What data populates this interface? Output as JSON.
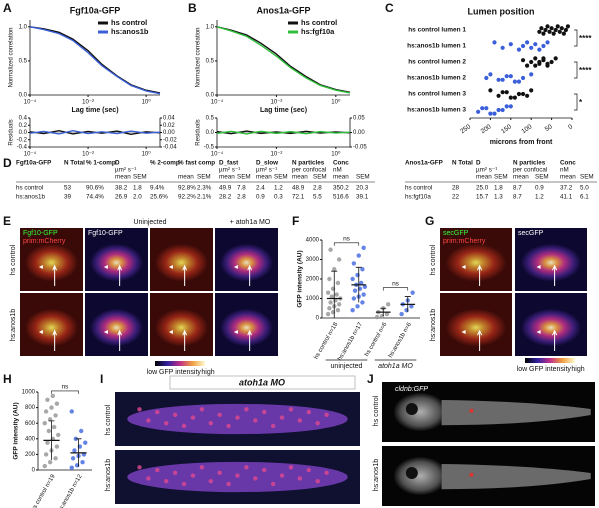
{
  "panel_letters": [
    "A",
    "B",
    "C",
    "D",
    "E",
    "F",
    "G",
    "H",
    "I",
    "J"
  ],
  "chart_data": [
    {
      "type": "line",
      "title": "Fgf10a-GFP",
      "ylabel": "Normalized correlation",
      "xlabel": "Lag time (sec)",
      "xlog": true,
      "xlim": [
        0.0001,
        3
      ],
      "xticks": [
        {
          "value": 0.0001,
          "label": "10⁻⁴"
        },
        {
          "value": 0.01,
          "label": "10⁻²"
        },
        {
          "value": 1,
          "label": "10⁰"
        }
      ],
      "ylim": [
        0,
        1.1
      ],
      "yticks": [
        {
          "value": 0,
          "label": "0.0"
        },
        0.5,
        {
          "value": 1,
          "label": "1.0"
        }
      ],
      "x": [
        0.0001,
        0.0003,
        0.001,
        0.003,
        0.01,
        0.03,
        0.1,
        0.3,
        1,
        3
      ],
      "series": [
        {
          "name": "hs control",
          "color": "#111111",
          "values": [
            1.0,
            0.97,
            0.92,
            0.82,
            0.65,
            0.45,
            0.28,
            0.15,
            0.07,
            0.03
          ]
        },
        {
          "name": "hs:anos1b",
          "color": "#3a5fd8",
          "values": [
            1.0,
            0.96,
            0.9,
            0.8,
            0.62,
            0.43,
            0.27,
            0.14,
            0.06,
            0.02
          ]
        }
      ]
    },
    {
      "type": "line",
      "ylabel": "Residuals",
      "xlog": true,
      "xlim": [
        0.0001,
        3
      ],
      "xticks": [
        {
          "value": 0.0001,
          "label": "10⁻⁴"
        },
        {
          "value": 0.01,
          "label": "10⁻²"
        },
        {
          "value": 1,
          "label": "10⁰"
        }
      ],
      "ylim": [
        -0.4,
        0.4
      ],
      "yticks": [
        -0.4,
        -0.2,
        {
          "value": 0,
          "label": "0.0"
        },
        0.2,
        0.4
      ],
      "y2lim": [
        -0.04,
        0.04
      ],
      "y2ticks": [
        -0.04,
        -0.02,
        {
          "value": 0,
          "label": "0.00"
        },
        0.02,
        0.04
      ],
      "x": [
        0.0001,
        0.0003,
        0.001,
        0.003,
        0.01,
        0.03,
        0.1,
        0.3,
        1,
        3
      ],
      "series": [
        {
          "color": "#111111",
          "values": [
            0.02,
            -0.03,
            0.05,
            -0.04,
            0.03,
            -0.02,
            0.04,
            -0.05,
            0.02,
            -0.01
          ]
        },
        {
          "color": "#3a5fd8",
          "values": [
            -0.02,
            0.03,
            -0.04,
            0.05,
            -0.03,
            0.02,
            -0.03,
            0.04,
            -0.02,
            0.01
          ]
        }
      ]
    },
    {
      "type": "line",
      "title": "Anos1a-GFP",
      "ylabel": "Normalized correlation",
      "xlabel": "Lag time (sec)",
      "xlog": true,
      "xlim": [
        0.0001,
        3
      ],
      "xticks": [
        {
          "value": 0.0001,
          "label": "10⁻⁴"
        },
        {
          "value": 0.01,
          "label": "10⁻²"
        },
        {
          "value": 1,
          "label": "10⁰"
        }
      ],
      "ylim": [
        0,
        1.1
      ],
      "yticks": [
        {
          "value": 0,
          "label": "0.0"
        },
        0.5,
        {
          "value": 1,
          "label": "1.0"
        }
      ],
      "x": [
        0.0001,
        0.0003,
        0.001,
        0.003,
        0.01,
        0.03,
        0.1,
        0.3,
        1,
        3
      ],
      "series": [
        {
          "name": "hs control",
          "color": "#111111",
          "values": [
            1.0,
            0.95,
            0.88,
            0.76,
            0.6,
            0.42,
            0.27,
            0.15,
            0.08,
            0.04
          ]
        },
        {
          "name": "hs:fgf10a",
          "color": "#2fbf3a",
          "values": [
            1.0,
            0.94,
            0.86,
            0.73,
            0.57,
            0.4,
            0.25,
            0.14,
            0.07,
            0.03
          ]
        }
      ]
    },
    {
      "type": "line",
      "ylabel": "Residuals",
      "xlog": true,
      "xlim": [
        0.0001,
        3
      ],
      "xticks": [
        {
          "value": 0.0001,
          "label": "10⁻⁴"
        },
        {
          "value": 0.01,
          "label": "10⁻²"
        },
        {
          "value": 1,
          "label": "10⁰"
        }
      ],
      "ylim": [
        -0.5,
        0.5
      ],
      "yticks": [
        -0.5,
        {
          "value": 0,
          "label": "0.0"
        },
        0.5
      ],
      "y2lim": [
        -0.05,
        0.05
      ],
      "y2ticks": [
        -0.05,
        {
          "value": 0,
          "label": "0.00"
        },
        0.05
      ],
      "x": [
        0.0001,
        0.0003,
        0.001,
        0.003,
        0.01,
        0.03,
        0.1,
        0.3,
        1,
        3
      ],
      "series": [
        {
          "color": "#111111",
          "values": [
            0.03,
            -0.04,
            0.05,
            -0.03,
            0.02,
            -0.03,
            0.04,
            -0.02,
            0.02,
            -0.01
          ]
        },
        {
          "color": "#2fbf3a",
          "values": [
            -0.03,
            0.04,
            -0.05,
            0.04,
            -0.03,
            0.03,
            -0.04,
            0.03,
            -0.02,
            0.01
          ]
        }
      ]
    },
    {
      "type": "strip-h",
      "title": "Lumen position",
      "xlabel": "microns from front",
      "xlim": [
        250,
        0
      ],
      "xticks": [
        250,
        200,
        150,
        100,
        50,
        0
      ],
      "categories": [
        "hs control lumen 1",
        "hs:anos1b lumen 1",
        "hs control lumen 2",
        "hs:anos1b lumen 2",
        "hs control lumen 3",
        "hs:anos1b lumen 3"
      ],
      "colors": [
        "#111111",
        "#3a5fd8",
        "#111111",
        "#3a5fd8",
        "#111111",
        "#3a5fd8"
      ],
      "values": [
        [
          10,
          15,
          20,
          25,
          30,
          35,
          40,
          45,
          50,
          55,
          60,
          65,
          70,
          75,
          80
        ],
        [
          60,
          70,
          80,
          90,
          100,
          110,
          120,
          130,
          150,
          170,
          190
        ],
        [
          40,
          50,
          60,
          70,
          80,
          90,
          100,
          110,
          120,
          60,
          70,
          80,
          90
        ],
        [
          100,
          120,
          140,
          160,
          180,
          200,
          210,
          130,
          150,
          170
        ],
        [
          100,
          120,
          140,
          160,
          180,
          200,
          130,
          150,
          170,
          110
        ],
        [
          150,
          170,
          190,
          210,
          230,
          160,
          180,
          200,
          220
        ]
      ],
      "annotations": [
        "****",
        "****",
        "*"
      ]
    },
    {
      "type": "strip-v",
      "ylabel": "GFP intensity (AU)",
      "ylim": [
        0,
        4000
      ],
      "yticks": [
        0,
        1000,
        2000,
        3000,
        4000
      ],
      "categories": [
        "hs control n=18",
        "hs:anos1b n=17",
        "hs control n=6",
        "hs:anos1b n=6"
      ],
      "groups": [
        "uninjected",
        "atoh1a MO"
      ],
      "colors": [
        "#999999",
        "#4a6fe3",
        "#999999",
        "#4a6fe3"
      ],
      "values": [
        [
          200,
          300,
          400,
          500,
          600,
          700,
          800,
          900,
          1000,
          1100,
          1200,
          1300,
          1500,
          1800,
          2000,
          2500,
          3000,
          3500
        ],
        [
          400,
          600,
          800,
          1000,
          1100,
          1200,
          1400,
          1500,
          1600,
          1700,
          1800,
          2000,
          2200,
          2500,
          2800,
          3200,
          3600
        ],
        [
          50,
          100,
          200,
          300,
          500,
          700
        ],
        [
          200,
          400,
          600,
          700,
          900,
          1300
        ]
      ],
      "means": [
        1000,
        1700,
        300,
        700
      ],
      "sd": [
        1400,
        900,
        200,
        400
      ],
      "annotations": [
        "ns",
        "ns"
      ]
    },
    {
      "type": "strip-v",
      "ylabel": "GFP intensity (AU)",
      "ylim": [
        0,
        1000
      ],
      "yticks": [
        0,
        200,
        400,
        600,
        800,
        1000
      ],
      "categories": [
        "hs control n=19",
        "hs:anos1b n=12"
      ],
      "colors": [
        "#999999",
        "#4a6fe3"
      ],
      "values": [
        [
          50,
          100,
          150,
          200,
          250,
          300,
          350,
          400,
          450,
          500,
          550,
          600,
          650,
          700,
          750,
          800,
          850,
          900,
          950
        ],
        [
          30,
          60,
          100,
          150,
          180,
          200,
          250,
          300,
          350,
          400,
          500,
          750
        ]
      ],
      "means": [
        380,
        220
      ],
      "sd": [
        250,
        180
      ],
      "annotations": [
        "ns"
      ]
    }
  ],
  "table": {
    "left": [
      [
        "Fgf10a-GFP",
        "N Total",
        "% 1-comp",
        "D",
        null,
        "% 2-comp",
        "% fast comp",
        null,
        "D_fast",
        null,
        "D_slow",
        null,
        "N particles",
        null,
        "Conc",
        null
      ],
      [
        null,
        null,
        null,
        "µm² s⁻¹",
        null,
        null,
        null,
        null,
        "µm² s⁻¹",
        null,
        "µm² s⁻¹",
        null,
        "per confocal",
        null,
        "nM",
        null
      ],
      [
        null,
        null,
        null,
        "mean",
        "SEM",
        null,
        "mean",
        "SEM",
        "mean",
        "SEM",
        "mean",
        "SEM",
        "mean",
        "SEM",
        "mean",
        "SEM"
      ],
      [
        "hs control",
        "53",
        "90.6%",
        "38.2",
        "1.8",
        "9.4%",
        "92.8%",
        "2.3%",
        "49.9",
        "7.8",
        "2.4",
        "1.2",
        "48.9",
        "2.8",
        "350.2",
        "20.3"
      ],
      [
        "hs:anos1b",
        "39",
        "74.4%",
        "26.9",
        "2.0",
        "25.6%",
        "92.2%",
        "2.1%",
        "28.2",
        "2.8",
        "0.9",
        "0.3",
        "72.1",
        "5.5",
        "516.6",
        "39.1"
      ]
    ],
    "right": [
      [
        "Anos1a-GFP",
        "N Total",
        "D",
        null,
        "N particles",
        null,
        "Conc",
        null
      ],
      [
        null,
        null,
        "µm² s⁻¹",
        null,
        "per confocal",
        null,
        "nM",
        null
      ],
      [
        null,
        null,
        "mean",
        "SEM",
        "mean",
        "SEM",
        "mean",
        "SEM"
      ],
      [
        "hs control",
        "28",
        "25.0",
        "1.8",
        "8.7",
        "0.9",
        "37.2",
        "5.0"
      ],
      [
        "hs:fgf10a",
        "22",
        "15.7",
        "1.3",
        "8.7",
        "1.2",
        "41.1",
        "6.1"
      ]
    ]
  },
  "panel_E": {
    "column_headers": [
      "Uninjected",
      "+ atoh1a MO"
    ],
    "channel_labels": [
      "Fgf10-GFP",
      "prim:mCherry"
    ],
    "row_labels": [
      "hs control",
      "hs:anos1b"
    ],
    "colorbar": [
      "low",
      "GFP intensity",
      "high"
    ]
  },
  "panel_G": {
    "channel_labels": [
      "secGFP",
      "prim:mCherry",
      "secGFP"
    ],
    "row_labels": [
      "hs control",
      "hs:anos1b"
    ],
    "colorbar": [
      "low",
      "GFP intensity",
      "high"
    ]
  },
  "panel_I": {
    "header": "atoh1a MO",
    "row_labels": [
      "hs control",
      "hs:anos1b"
    ]
  },
  "panel_J": {
    "channel_label": "cldnb:GFP",
    "row_labels": [
      "hs control",
      "hs:anos1b"
    ]
  }
}
